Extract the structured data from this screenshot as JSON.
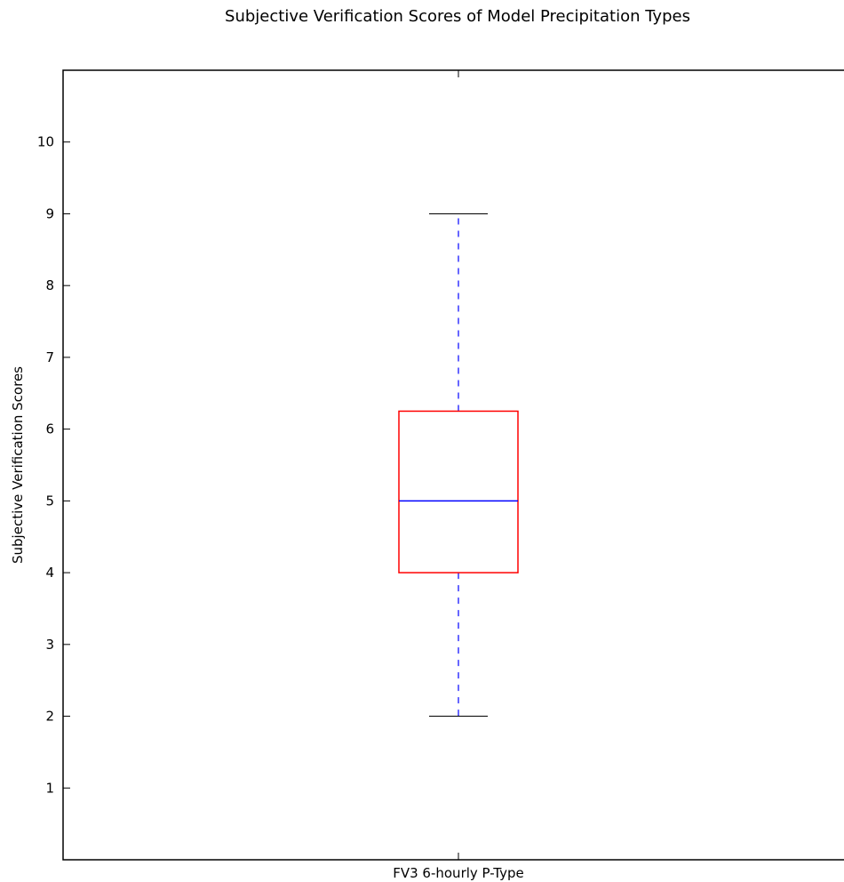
{
  "chart_data": {
    "type": "box",
    "title": "Subjective Verification Scores of Model Precipitation Types",
    "xlabel": "",
    "ylabel": "Subjective Verification Scores",
    "ylim": [
      0,
      11
    ],
    "yticks": [
      1,
      2,
      3,
      4,
      5,
      6,
      7,
      8,
      9,
      10
    ],
    "categories": [
      "FV3 6-hourly P-Type"
    ],
    "boxes": [
      {
        "category": "FV3 6-hourly P-Type",
        "whisker_low": 2,
        "q1": 4,
        "median": 5,
        "q3": 6.25,
        "whisker_high": 9
      }
    ],
    "grid": false,
    "colors": {
      "box": "#ff0000",
      "median": "#0000ff",
      "whisker": "#0000ff",
      "cap": "#000000",
      "axes": "#000000"
    }
  }
}
